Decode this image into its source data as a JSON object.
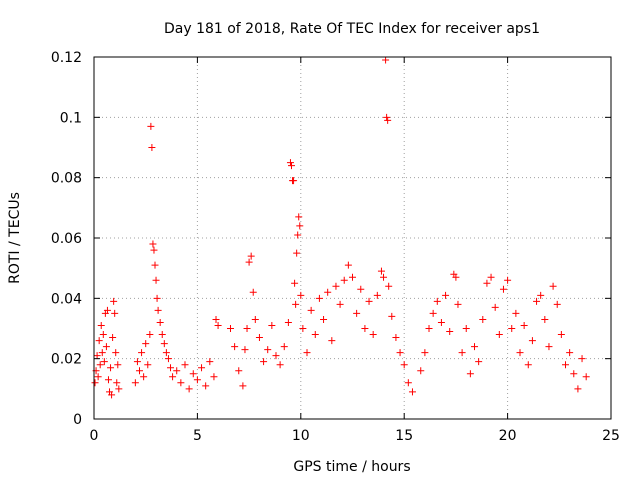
{
  "chart_data": {
    "type": "scatter",
    "title": "Day 181 of 2018, Rate Of TEC Index for receiver aps1",
    "xlabel": "GPS time / hours",
    "ylabel": "ROTI / TECUs",
    "xlim": [
      0,
      25
    ],
    "ylim": [
      0,
      0.12
    ],
    "xticks": [
      0,
      5,
      10,
      15,
      20,
      25
    ],
    "xtick_labels": [
      "0",
      "5",
      "10",
      "15",
      "20",
      "25"
    ],
    "yticks": [
      0,
      0.02,
      0.04,
      0.06,
      0.08,
      0.1,
      0.12
    ],
    "ytick_labels": [
      "0",
      "0.02",
      "0.04",
      "0.06",
      "0.08",
      "0.1",
      "0.12"
    ],
    "grid": true,
    "marker": "+",
    "color": "#ff0000",
    "series": [
      {
        "points": [
          [
            0.05,
            0.012
          ],
          [
            0.1,
            0.016
          ],
          [
            0.15,
            0.021
          ],
          [
            0.2,
            0.014
          ],
          [
            0.25,
            0.026
          ],
          [
            0.3,
            0.018
          ],
          [
            0.35,
            0.031
          ],
          [
            0.4,
            0.022
          ],
          [
            0.45,
            0.028
          ],
          [
            0.5,
            0.019
          ],
          [
            0.55,
            0.035
          ],
          [
            0.6,
            0.024
          ],
          [
            0.65,
            0.036
          ],
          [
            0.7,
            0.013
          ],
          [
            0.75,
            0.009
          ],
          [
            0.8,
            0.017
          ],
          [
            0.85,
            0.008
          ],
          [
            0.9,
            0.027
          ],
          [
            0.95,
            0.039
          ],
          [
            1.0,
            0.035
          ],
          [
            1.05,
            0.022
          ],
          [
            1.1,
            0.012
          ],
          [
            1.15,
            0.018
          ],
          [
            1.2,
            0.01
          ],
          [
            2.0,
            0.012
          ],
          [
            2.1,
            0.019
          ],
          [
            2.2,
            0.016
          ],
          [
            2.3,
            0.022
          ],
          [
            2.4,
            0.014
          ],
          [
            2.5,
            0.025
          ],
          [
            2.6,
            0.018
          ],
          [
            2.7,
            0.028
          ],
          [
            2.75,
            0.097
          ],
          [
            2.8,
            0.09
          ],
          [
            2.85,
            0.058
          ],
          [
            2.9,
            0.056
          ],
          [
            2.95,
            0.051
          ],
          [
            3.0,
            0.046
          ],
          [
            3.05,
            0.04
          ],
          [
            3.1,
            0.036
          ],
          [
            3.2,
            0.032
          ],
          [
            3.3,
            0.028
          ],
          [
            3.4,
            0.025
          ],
          [
            3.5,
            0.022
          ],
          [
            3.6,
            0.02
          ],
          [
            3.7,
            0.017
          ],
          [
            3.8,
            0.014
          ],
          [
            4.0,
            0.016
          ],
          [
            4.2,
            0.012
          ],
          [
            4.4,
            0.018
          ],
          [
            4.6,
            0.01
          ],
          [
            4.8,
            0.015
          ],
          [
            5.0,
            0.013
          ],
          [
            5.2,
            0.017
          ],
          [
            5.4,
            0.011
          ],
          [
            5.6,
            0.019
          ],
          [
            5.8,
            0.014
          ],
          [
            5.9,
            0.033
          ],
          [
            6.0,
            0.031
          ],
          [
            6.6,
            0.03
          ],
          [
            6.8,
            0.024
          ],
          [
            7.0,
            0.016
          ],
          [
            7.2,
            0.011
          ],
          [
            7.3,
            0.023
          ],
          [
            7.4,
            0.03
          ],
          [
            7.5,
            0.052
          ],
          [
            7.6,
            0.054
          ],
          [
            7.7,
            0.042
          ],
          [
            7.8,
            0.033
          ],
          [
            8.0,
            0.027
          ],
          [
            8.2,
            0.019
          ],
          [
            8.4,
            0.023
          ],
          [
            8.6,
            0.031
          ],
          [
            8.8,
            0.021
          ],
          [
            9.0,
            0.018
          ],
          [
            9.2,
            0.024
          ],
          [
            9.4,
            0.032
          ],
          [
            9.5,
            0.085
          ],
          [
            9.55,
            0.084
          ],
          [
            9.6,
            0.079
          ],
          [
            9.65,
            0.079
          ],
          [
            9.7,
            0.045
          ],
          [
            9.75,
            0.038
          ],
          [
            9.8,
            0.055
          ],
          [
            9.85,
            0.061
          ],
          [
            9.9,
            0.067
          ],
          [
            9.95,
            0.064
          ],
          [
            10.0,
            0.041
          ],
          [
            10.1,
            0.03
          ],
          [
            10.3,
            0.022
          ],
          [
            10.5,
            0.036
          ],
          [
            10.7,
            0.028
          ],
          [
            10.9,
            0.04
          ],
          [
            11.1,
            0.033
          ],
          [
            11.3,
            0.042
          ],
          [
            11.5,
            0.026
          ],
          [
            11.7,
            0.044
          ],
          [
            11.9,
            0.038
          ],
          [
            12.1,
            0.046
          ],
          [
            12.3,
            0.051
          ],
          [
            12.5,
            0.047
          ],
          [
            12.7,
            0.035
          ],
          [
            12.9,
            0.043
          ],
          [
            13.1,
            0.03
          ],
          [
            13.3,
            0.039
          ],
          [
            13.5,
            0.028
          ],
          [
            13.7,
            0.041
          ],
          [
            13.9,
            0.049
          ],
          [
            14.0,
            0.047
          ],
          [
            14.1,
            0.119
          ],
          [
            14.15,
            0.1
          ],
          [
            14.2,
            0.099
          ],
          [
            14.25,
            0.044
          ],
          [
            14.4,
            0.034
          ],
          [
            14.6,
            0.027
          ],
          [
            14.8,
            0.022
          ],
          [
            15.0,
            0.018
          ],
          [
            15.2,
            0.012
          ],
          [
            15.4,
            0.009
          ],
          [
            15.8,
            0.016
          ],
          [
            16.0,
            0.022
          ],
          [
            16.2,
            0.03
          ],
          [
            16.4,
            0.035
          ],
          [
            16.6,
            0.039
          ],
          [
            16.8,
            0.032
          ],
          [
            17.0,
            0.041
          ],
          [
            17.2,
            0.029
          ],
          [
            17.4,
            0.048
          ],
          [
            17.5,
            0.047
          ],
          [
            17.6,
            0.038
          ],
          [
            17.8,
            0.022
          ],
          [
            18.0,
            0.03
          ],
          [
            18.2,
            0.015
          ],
          [
            18.4,
            0.024
          ],
          [
            18.6,
            0.019
          ],
          [
            18.8,
            0.033
          ],
          [
            19.0,
            0.045
          ],
          [
            19.2,
            0.047
          ],
          [
            19.4,
            0.037
          ],
          [
            19.6,
            0.028
          ],
          [
            19.8,
            0.043
          ],
          [
            20.0,
            0.046
          ],
          [
            20.2,
            0.03
          ],
          [
            20.4,
            0.035
          ],
          [
            20.6,
            0.022
          ],
          [
            20.8,
            0.031
          ],
          [
            21.0,
            0.018
          ],
          [
            21.2,
            0.026
          ],
          [
            21.4,
            0.039
          ],
          [
            21.6,
            0.041
          ],
          [
            21.8,
            0.033
          ],
          [
            22.0,
            0.024
          ],
          [
            22.2,
            0.044
          ],
          [
            22.4,
            0.038
          ],
          [
            22.6,
            0.028
          ],
          [
            22.8,
            0.018
          ],
          [
            23.0,
            0.022
          ],
          [
            23.2,
            0.015
          ],
          [
            23.4,
            0.01
          ],
          [
            23.6,
            0.02
          ],
          [
            23.8,
            0.014
          ]
        ]
      }
    ]
  }
}
